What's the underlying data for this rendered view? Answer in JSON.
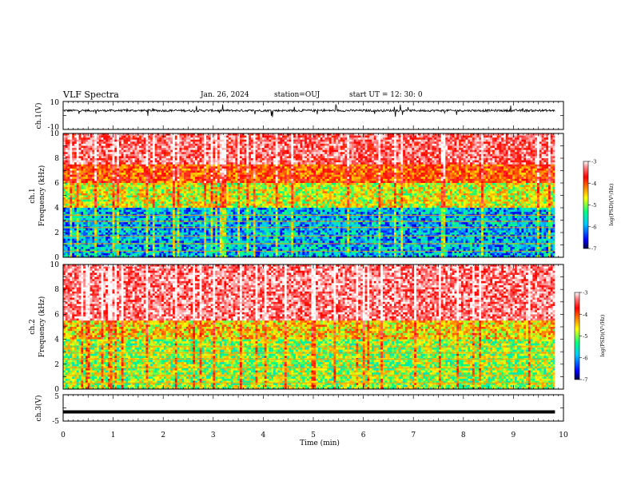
{
  "header": {
    "title": "VLF Spectra",
    "date": "Jan. 26, 2024",
    "station": "station=OUJ",
    "start": "start  UT =  12: 30: 0"
  },
  "chart_data": [
    {
      "id": "ch1-waveform",
      "type": "line",
      "ylabel": "ch.1(V)",
      "ylim": [
        -10,
        10
      ],
      "ytick_labels": [
        "10",
        "-10"
      ],
      "x_range_min": [
        0,
        9.83
      ],
      "baseline_v": 3.5,
      "color": "#000000"
    },
    {
      "id": "ch1-spectrogram",
      "type": "heatmap",
      "ylabel_line1": "ch.1",
      "ylabel_line2": "Frequency (kHz)",
      "ylim": [
        0,
        10
      ],
      "ytick_labels": [
        "0",
        "2",
        "4",
        "6",
        "8",
        "10"
      ],
      "x_range_min": [
        0,
        9.83
      ],
      "colorbar": {
        "label": "log(PSD)(V²/Hz)",
        "range": [
          -7,
          -3
        ],
        "tick_labels": [
          "-3",
          "-4",
          "-5",
          "-6",
          "-7"
        ],
        "colors": [
          "#000044",
          "#0000ff",
          "#00c8ff",
          "#00ff80",
          "#ffff00",
          "#ff8000",
          "#ff0000",
          "#ff8080",
          "#ffffff"
        ]
      },
      "bands": [
        {
          "from_khz": 0,
          "to_khz": 4,
          "level": -6.0
        },
        {
          "from_khz": 4,
          "to_khz": 6,
          "level": -5.0
        },
        {
          "from_khz": 6,
          "to_khz": 7.5,
          "level": -4.3
        },
        {
          "from_khz": 7.5,
          "to_khz": 10,
          "level": -3.6
        }
      ]
    },
    {
      "id": "ch2-spectrogram",
      "type": "heatmap",
      "ylabel_line1": "ch.2",
      "ylabel_line2": "Frequency (kHz)",
      "ylim": [
        0,
        10
      ],
      "ytick_labels": [
        "0",
        "2",
        "4",
        "6",
        "8",
        "10"
      ],
      "x_range_min": [
        0,
        9.83
      ],
      "colorbar": {
        "label": "log(PSD)(V²/Hz)",
        "range": [
          -7,
          -3
        ],
        "tick_labels": [
          "-3",
          "-4",
          "-5",
          "-6",
          "-7"
        ],
        "colors": [
          "#000044",
          "#0000ff",
          "#00c8ff",
          "#00ff80",
          "#ffff00",
          "#ff8000",
          "#ff0000",
          "#ff8080",
          "#ffffff"
        ]
      },
      "bands": [
        {
          "from_khz": 0,
          "to_khz": 4,
          "level": -5.2
        },
        {
          "from_khz": 4,
          "to_khz": 5.5,
          "level": -4.8
        },
        {
          "from_khz": 5.5,
          "to_khz": 10,
          "level": -3.5
        }
      ]
    },
    {
      "id": "ch3-waveform",
      "type": "line",
      "ylabel": "ch.3(V)",
      "ylim": [
        -5,
        5
      ],
      "ytick_labels": [
        "5",
        "-5"
      ],
      "x_range_min": [
        0,
        9.83
      ],
      "baseline_v": -1.5,
      "color": "#000000"
    }
  ],
  "xaxis": {
    "label": "Time (min)",
    "range": [
      0,
      10
    ],
    "tick_labels": [
      "0",
      "1",
      "2",
      "3",
      "4",
      "5",
      "6",
      "7",
      "8",
      "9",
      "10"
    ]
  }
}
